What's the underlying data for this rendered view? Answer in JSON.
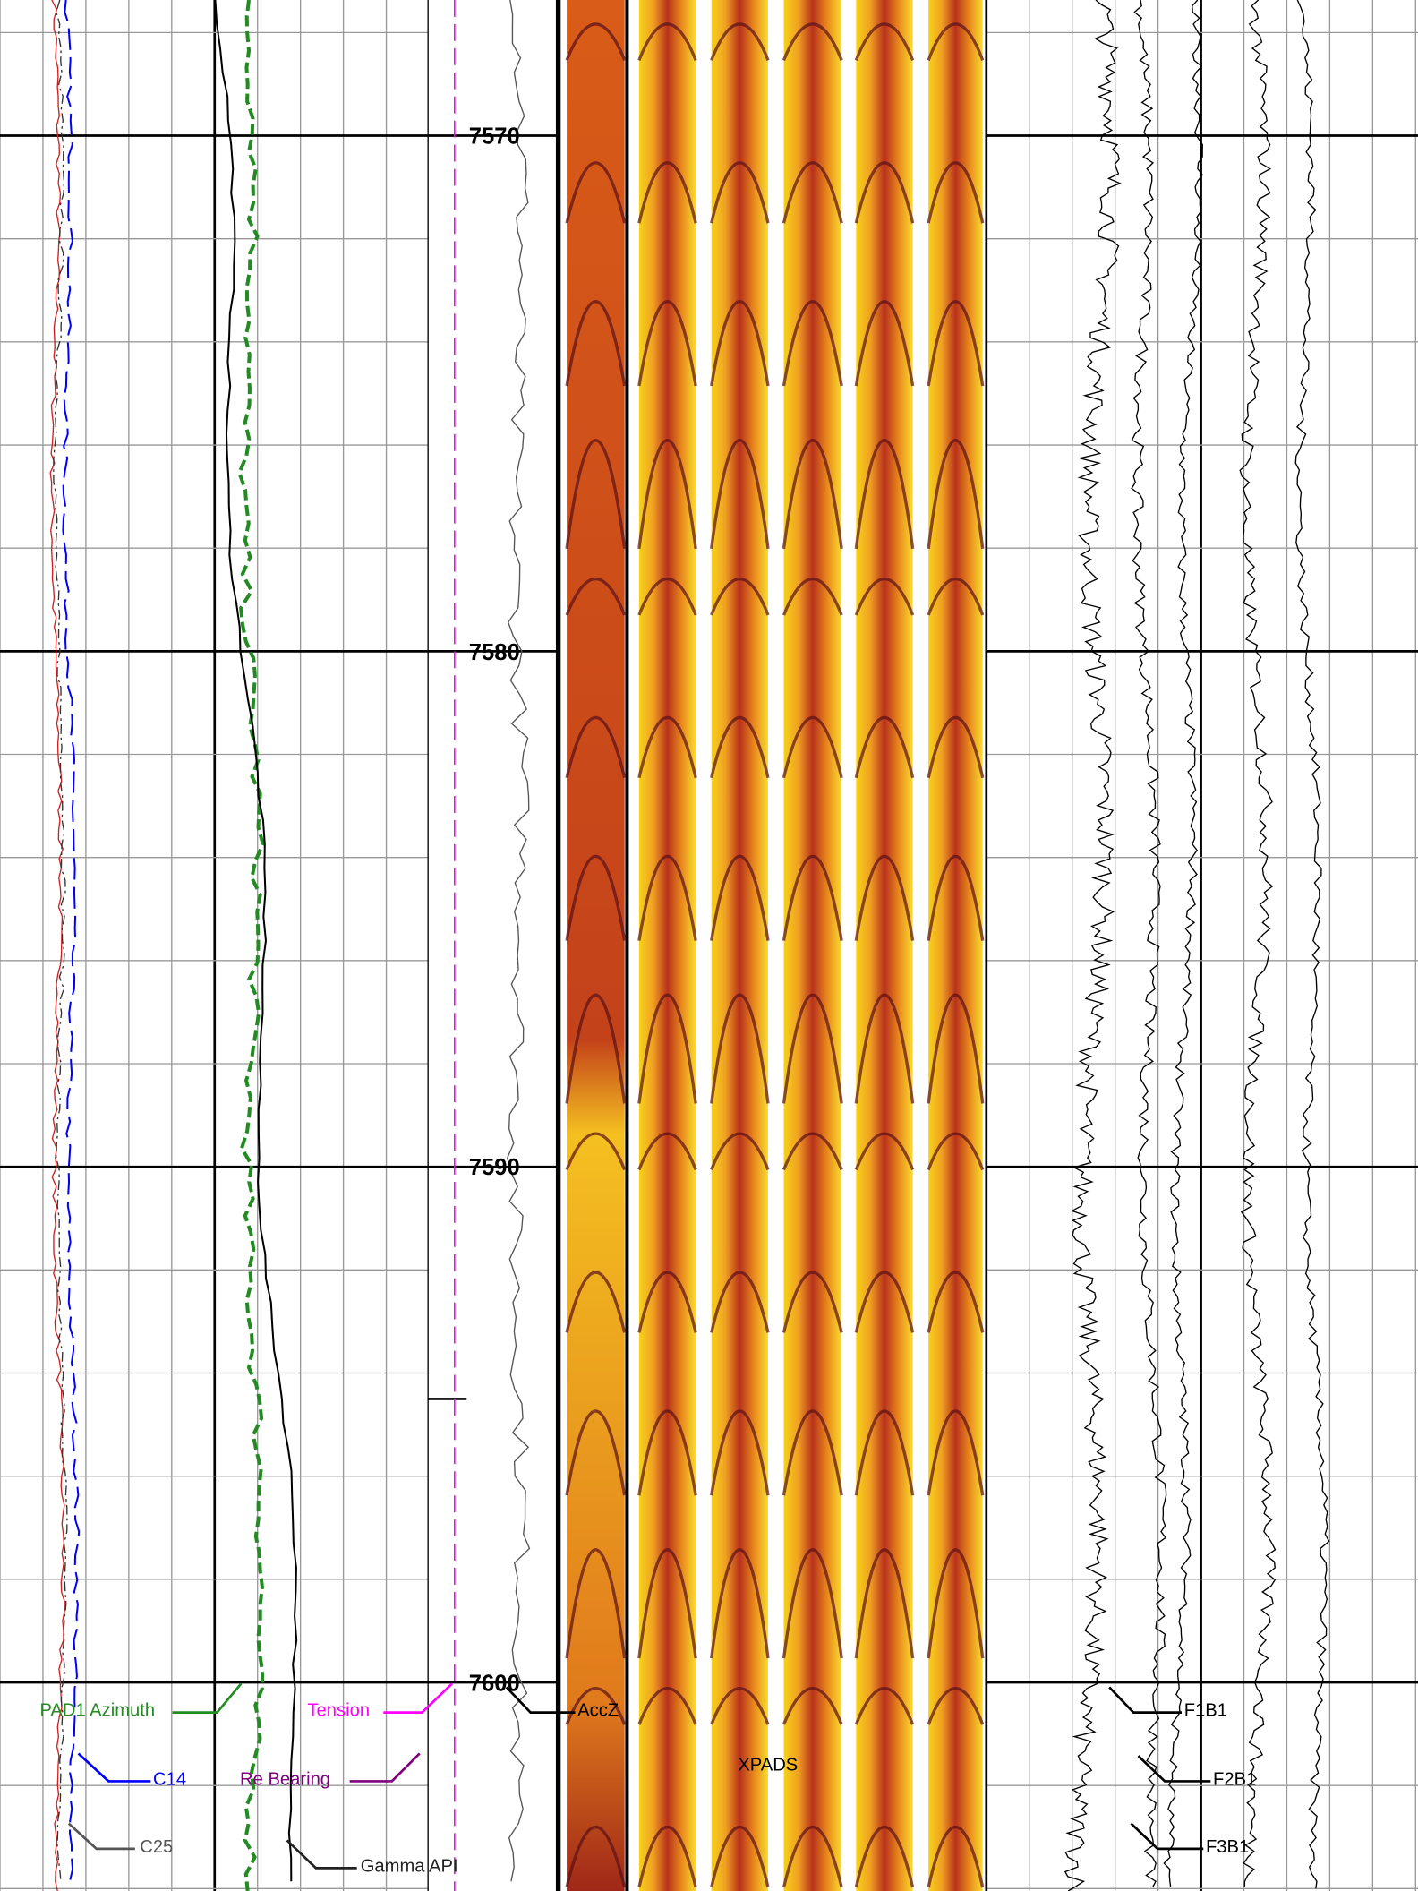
{
  "depth_track": {
    "labels": [
      7570,
      7580,
      7590,
      7600
    ]
  },
  "curve_labels": {
    "pad1_azimuth": "PAD1 Azimuth",
    "tension": "Tension",
    "c14": "C14",
    "re_bearing": "Re Bearing",
    "c25": "C25",
    "gamma_api": "Gamma API",
    "accz": "AccZ",
    "xpads": "XPADS",
    "f1b1": "F1B1",
    "f2b1": "F2B1",
    "f3b1": "F3B1"
  }
}
